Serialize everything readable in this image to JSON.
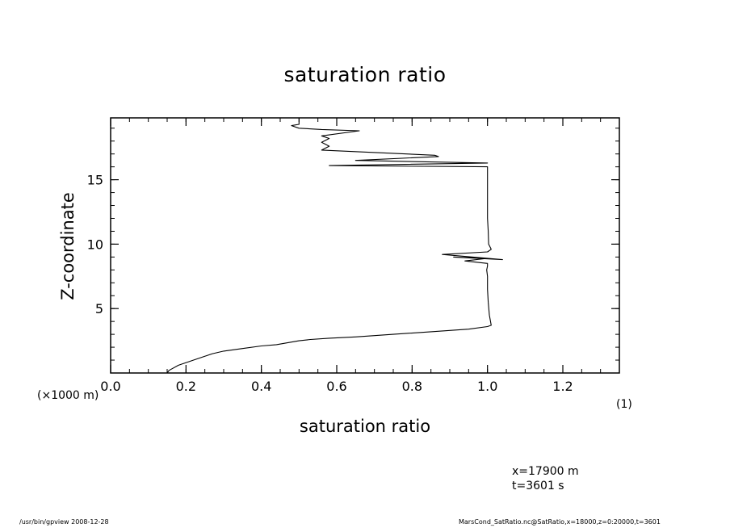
{
  "chart_data": {
    "type": "line",
    "title": "saturation ratio",
    "xlabel": "saturation ratio",
    "ylabel": "Z-coordinate",
    "xlim": [
      0.0,
      1.35
    ],
    "ylim": [
      0.0,
      19.8
    ],
    "xticks": [
      0.0,
      0.2,
      0.4,
      0.6,
      0.8,
      1.0,
      1.2
    ],
    "xtick_labels": [
      "0.0",
      "0.2",
      "0.4",
      "0.6",
      "0.8",
      "1.0",
      "1.2"
    ],
    "yticks": [
      5,
      10,
      15
    ],
    "ytick_labels": [
      "5",
      "10",
      "15"
    ],
    "grid": false,
    "series": [
      {
        "x": [
          0.15,
          0.155,
          0.18,
          0.22,
          0.27,
          0.3,
          0.35,
          0.4,
          0.44,
          0.48,
          0.5,
          0.53,
          0.58,
          0.65,
          0.75,
          0.85,
          0.95,
          1.0,
          1.01,
          1.005,
          1.002,
          1.0,
          1.0,
          0.998,
          1.0,
          1.0,
          0.94,
          1.0,
          0.91,
          1.04,
          0.88,
          1.0,
          1.01,
          1.003,
          1.002,
          1.0,
          1.0,
          1.0,
          1.0,
          1.0,
          0.58,
          1.0,
          0.65,
          0.87,
          0.86,
          0.56,
          0.58,
          0.56,
          0.58,
          0.56,
          0.66,
          0.56,
          0.5,
          0.48,
          0.5,
          0.5
        ],
        "y": [
          0.0,
          0.2,
          0.6,
          1.0,
          1.5,
          1.7,
          1.9,
          2.1,
          2.2,
          2.4,
          2.5,
          2.6,
          2.7,
          2.8,
          3.0,
          3.2,
          3.4,
          3.6,
          3.7,
          4.5,
          5.5,
          6.5,
          7.5,
          8.0,
          8.3,
          8.5,
          8.7,
          8.9,
          9.0,
          8.8,
          9.2,
          9.4,
          9.6,
          10.0,
          11.0,
          12.0,
          13.0,
          14.0,
          15.0,
          16.0,
          16.1,
          16.3,
          16.5,
          16.8,
          16.9,
          17.3,
          17.6,
          17.9,
          18.2,
          18.4,
          18.8,
          18.9,
          19.0,
          19.2,
          19.3,
          19.8
        ]
      }
    ]
  },
  "annotations": {
    "z_unit": "(×1000 m)",
    "x_unit": "(1)",
    "x_position": "x=17900 m",
    "time": "t=3601 s"
  },
  "footer": {
    "left": "/usr/bin/gpview   2008-12-28",
    "right": "MarsCond_SatRatio.nc@SatRatio,x=18000,z=0:20000,t=3601"
  }
}
